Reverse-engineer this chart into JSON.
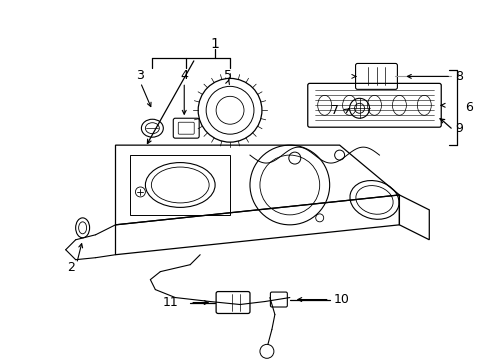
{
  "bg_color": "#ffffff",
  "lc": "#000000",
  "gc": "#999999",
  "fig_width": 4.89,
  "fig_height": 3.6,
  "dpi": 100
}
